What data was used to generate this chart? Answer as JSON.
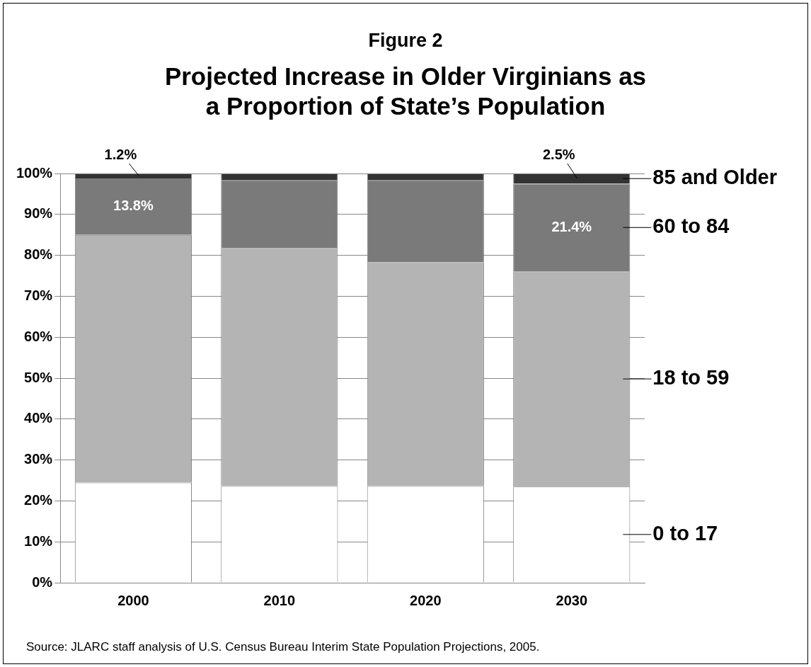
{
  "chart_data": {
    "type": "bar",
    "title": "Figure 2",
    "subtitle": "Projected Increase in Older Virginians as a Proportion of State’s Population",
    "categories": [
      "2000",
      "2010",
      "2020",
      "2030"
    ],
    "stacked": true,
    "legend": false,
    "grid": "y",
    "ylim": [
      0,
      100
    ],
    "yticks": [
      {
        "value": 0,
        "label": "0%"
      },
      {
        "value": 10,
        "label": "10%"
      },
      {
        "value": 20,
        "label": "20%"
      },
      {
        "value": 30,
        "label": "30%"
      },
      {
        "value": 40,
        "label": "40%"
      },
      {
        "value": 50,
        "label": "50%"
      },
      {
        "value": 60,
        "label": "60%"
      },
      {
        "value": 70,
        "label": "70%"
      },
      {
        "value": 80,
        "label": "80%"
      },
      {
        "value": 90,
        "label": "90%"
      },
      {
        "value": 100,
        "label": "100%"
      }
    ],
    "series": [
      {
        "name": "0 to 17",
        "color": "#ffffff",
        "values": [
          24.5,
          23.6,
          23.6,
          23.5
        ]
      },
      {
        "name": "18 to 59",
        "color": "#b4b4b4",
        "values": [
          60.5,
          58.2,
          54.7,
          52.6
        ]
      },
      {
        "name": "60 to 84",
        "color": "#7a7a7a",
        "values": [
          13.8,
          16.5,
          20.0,
          21.4
        ],
        "value_labels": [
          "13.8%",
          null,
          null,
          "21.4%"
        ]
      },
      {
        "name": "85 and Older",
        "color": "#333333",
        "values": [
          1.2,
          1.7,
          1.7,
          2.5
        ],
        "value_labels": [
          "1.2%",
          null,
          null,
          "2.5%"
        ]
      }
    ],
    "annotations": [
      "Source: JLARC staff analysis of U.S. Census Bureau Interim State Population Projections, 2005."
    ]
  }
}
